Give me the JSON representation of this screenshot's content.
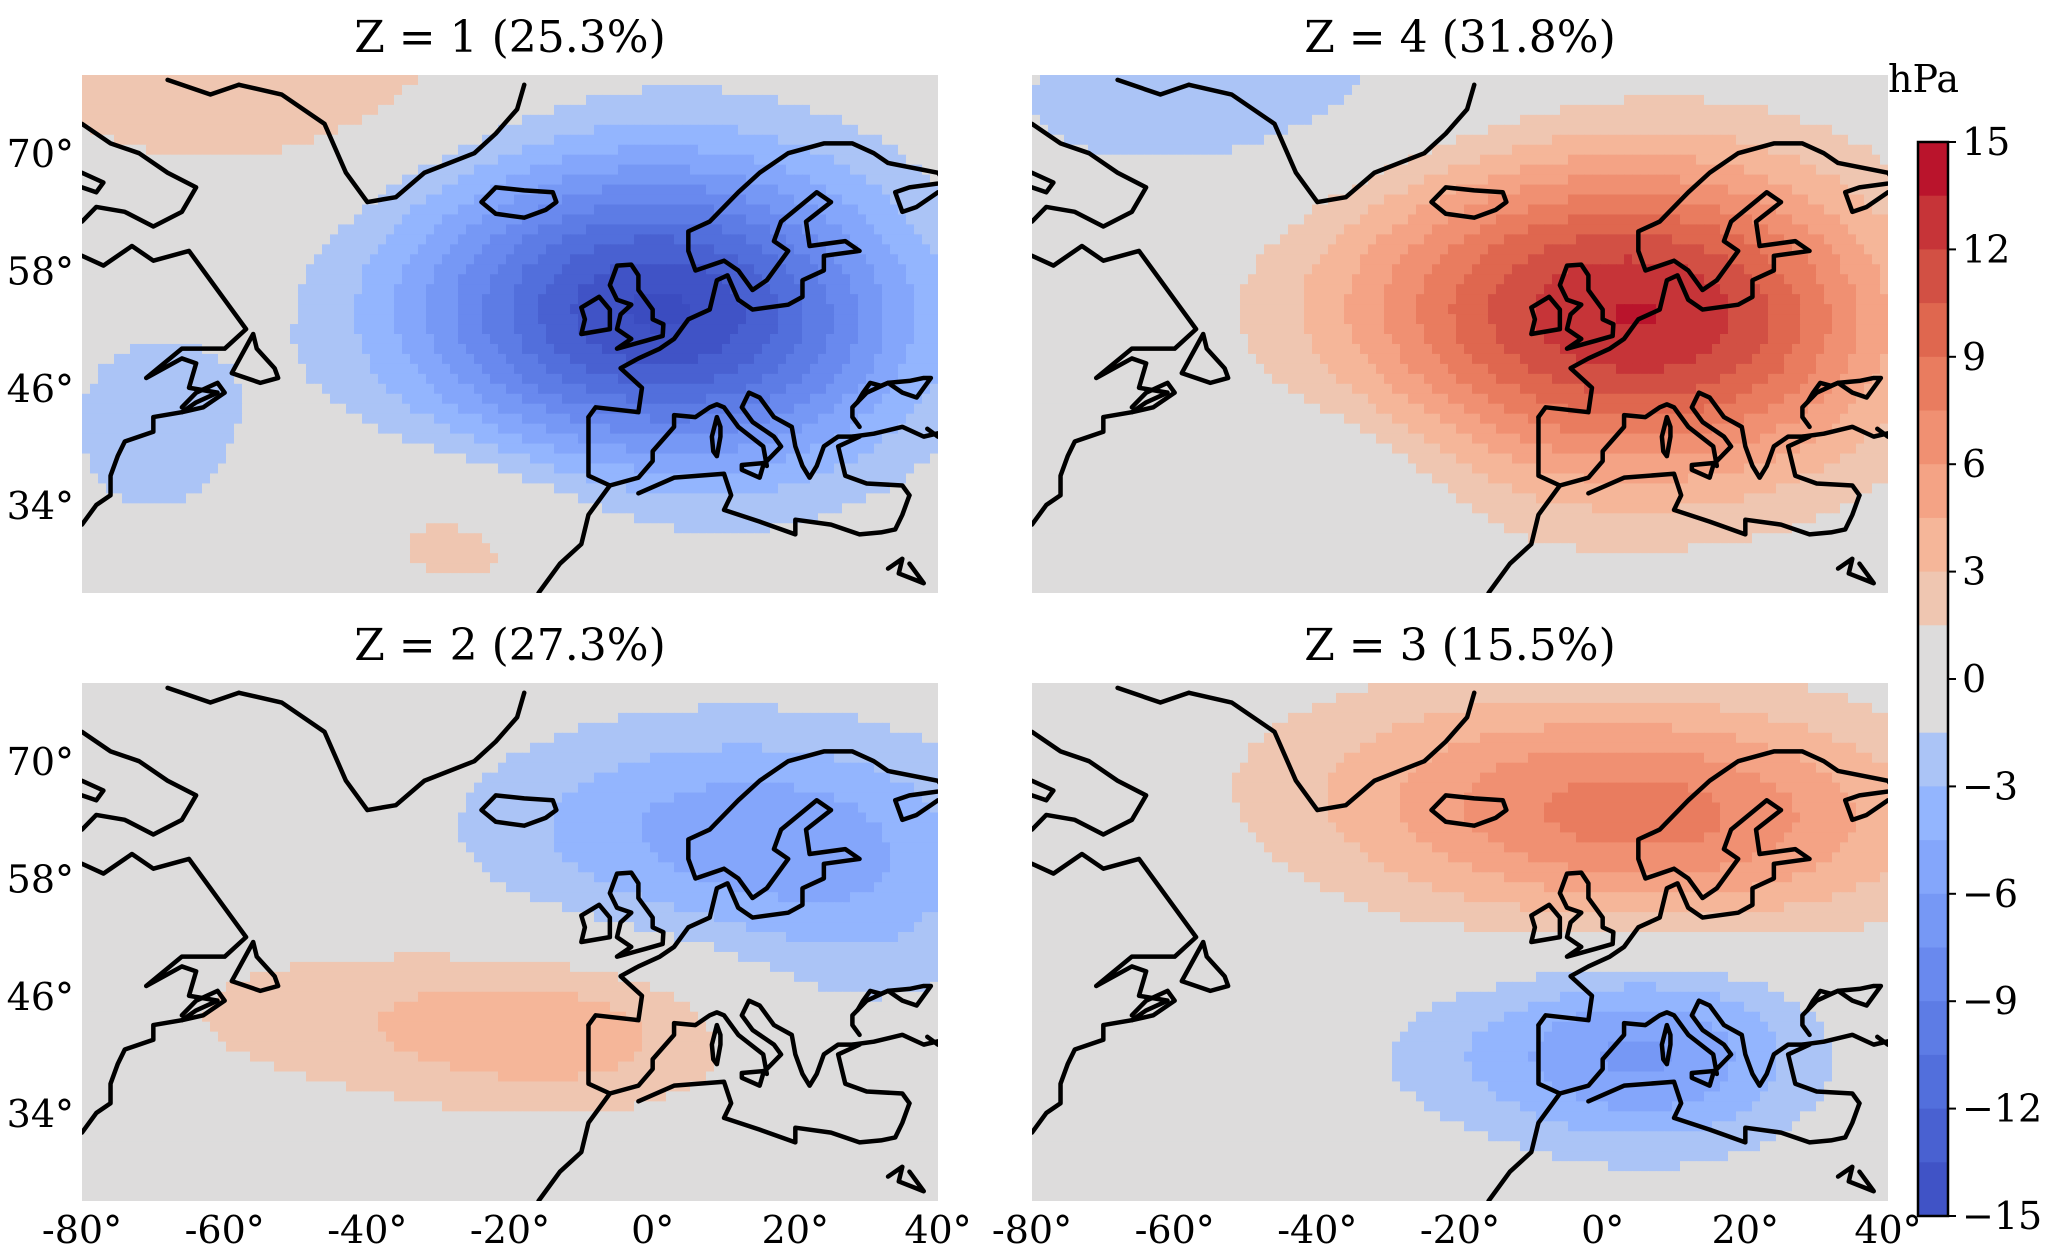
{
  "figure": {
    "panels": [
      {
        "id": "z1",
        "title": "Z = 1 (25.3%)",
        "pattern": [
          {
            "lon": -3,
            "lat": 54,
            "amp": -14,
            "sx": 22,
            "sy": 11
          },
          {
            "lon": 20,
            "lat": 52,
            "amp": -3,
            "sx": 16,
            "sy": 10
          },
          {
            "lon": -55,
            "lat": 78,
            "amp": 3,
            "sx": 25,
            "sy": 8
          },
          {
            "lon": -70,
            "lat": 42,
            "amp": -2.5,
            "sx": 10,
            "sy": 8
          },
          {
            "lon": -25,
            "lat": 32,
            "amp": 2.5,
            "sx": 15,
            "sy": 7
          }
        ]
      },
      {
        "id": "z4",
        "title": "Z = 4 (31.8%)",
        "pattern": [
          {
            "lon": -3,
            "lat": 54,
            "amp": 12,
            "sx": 24,
            "sy": 12
          },
          {
            "lon": 22,
            "lat": 52,
            "amp": 4,
            "sx": 16,
            "sy": 10
          },
          {
            "lon": -45,
            "lat": 75,
            "amp": -2.5,
            "sx": 35,
            "sy": 8
          },
          {
            "lon": -35,
            "lat": 37,
            "amp": -2,
            "sx": 14,
            "sy": 7
          }
        ]
      },
      {
        "id": "z2",
        "title": "Z = 2 (27.3%)",
        "pattern": [
          {
            "lon": 10,
            "lat": 63,
            "amp": -5,
            "sx": 24,
            "sy": 8
          },
          {
            "lon": -12,
            "lat": 42,
            "amp": 3.5,
            "sx": 18,
            "sy": 6
          },
          {
            "lon": -45,
            "lat": 44,
            "amp": 2,
            "sx": 22,
            "sy": 6
          },
          {
            "lon": 30,
            "lat": 54,
            "amp": -2,
            "sx": 14,
            "sy": 9
          }
        ]
      },
      {
        "id": "z3",
        "title": "Z = 3 (15.5%)",
        "pattern": [
          {
            "lon": 10,
            "lat": 64,
            "amp": 7,
            "sx": 26,
            "sy": 8
          },
          {
            "lon": -20,
            "lat": 68,
            "amp": 2.5,
            "sx": 25,
            "sy": 8
          },
          {
            "lon": 8,
            "lat": 40,
            "amp": -5.5,
            "sx": 15,
            "sy": 7
          },
          {
            "lon": -15,
            "lat": 40,
            "amp": -2,
            "sx": 16,
            "sy": 6
          }
        ]
      }
    ],
    "axes": {
      "lon_range": [
        -80,
        40
      ],
      "lat_range": [
        25,
        78
      ],
      "xticks": [
        -80,
        -60,
        -40,
        -20,
        0,
        20,
        40
      ],
      "xtick_labels": [
        "-80°",
        "-60°",
        "-40°",
        "-20°",
        "0°",
        "20°",
        "40°"
      ],
      "yticks": [
        70,
        58,
        46,
        34
      ],
      "ytick_labels": [
        "70°",
        "58°",
        "46°",
        "34°"
      ]
    },
    "colorbar": {
      "unit": "hPa",
      "range": [
        -15,
        15
      ],
      "step": 1.5,
      "ticks": [
        15,
        12,
        9,
        6,
        3,
        0,
        -3,
        -6,
        -9,
        -12,
        -15
      ],
      "tick_labels": [
        "15",
        "12",
        "9",
        "6",
        "3",
        "0",
        "−3",
        "−6",
        "−9",
        "−12",
        "−15"
      ],
      "colormap": "coolwarm"
    }
  },
  "colors": {
    "neutral": "#dddcdc",
    "low": "#3b4cc0",
    "high": "#b40426"
  }
}
